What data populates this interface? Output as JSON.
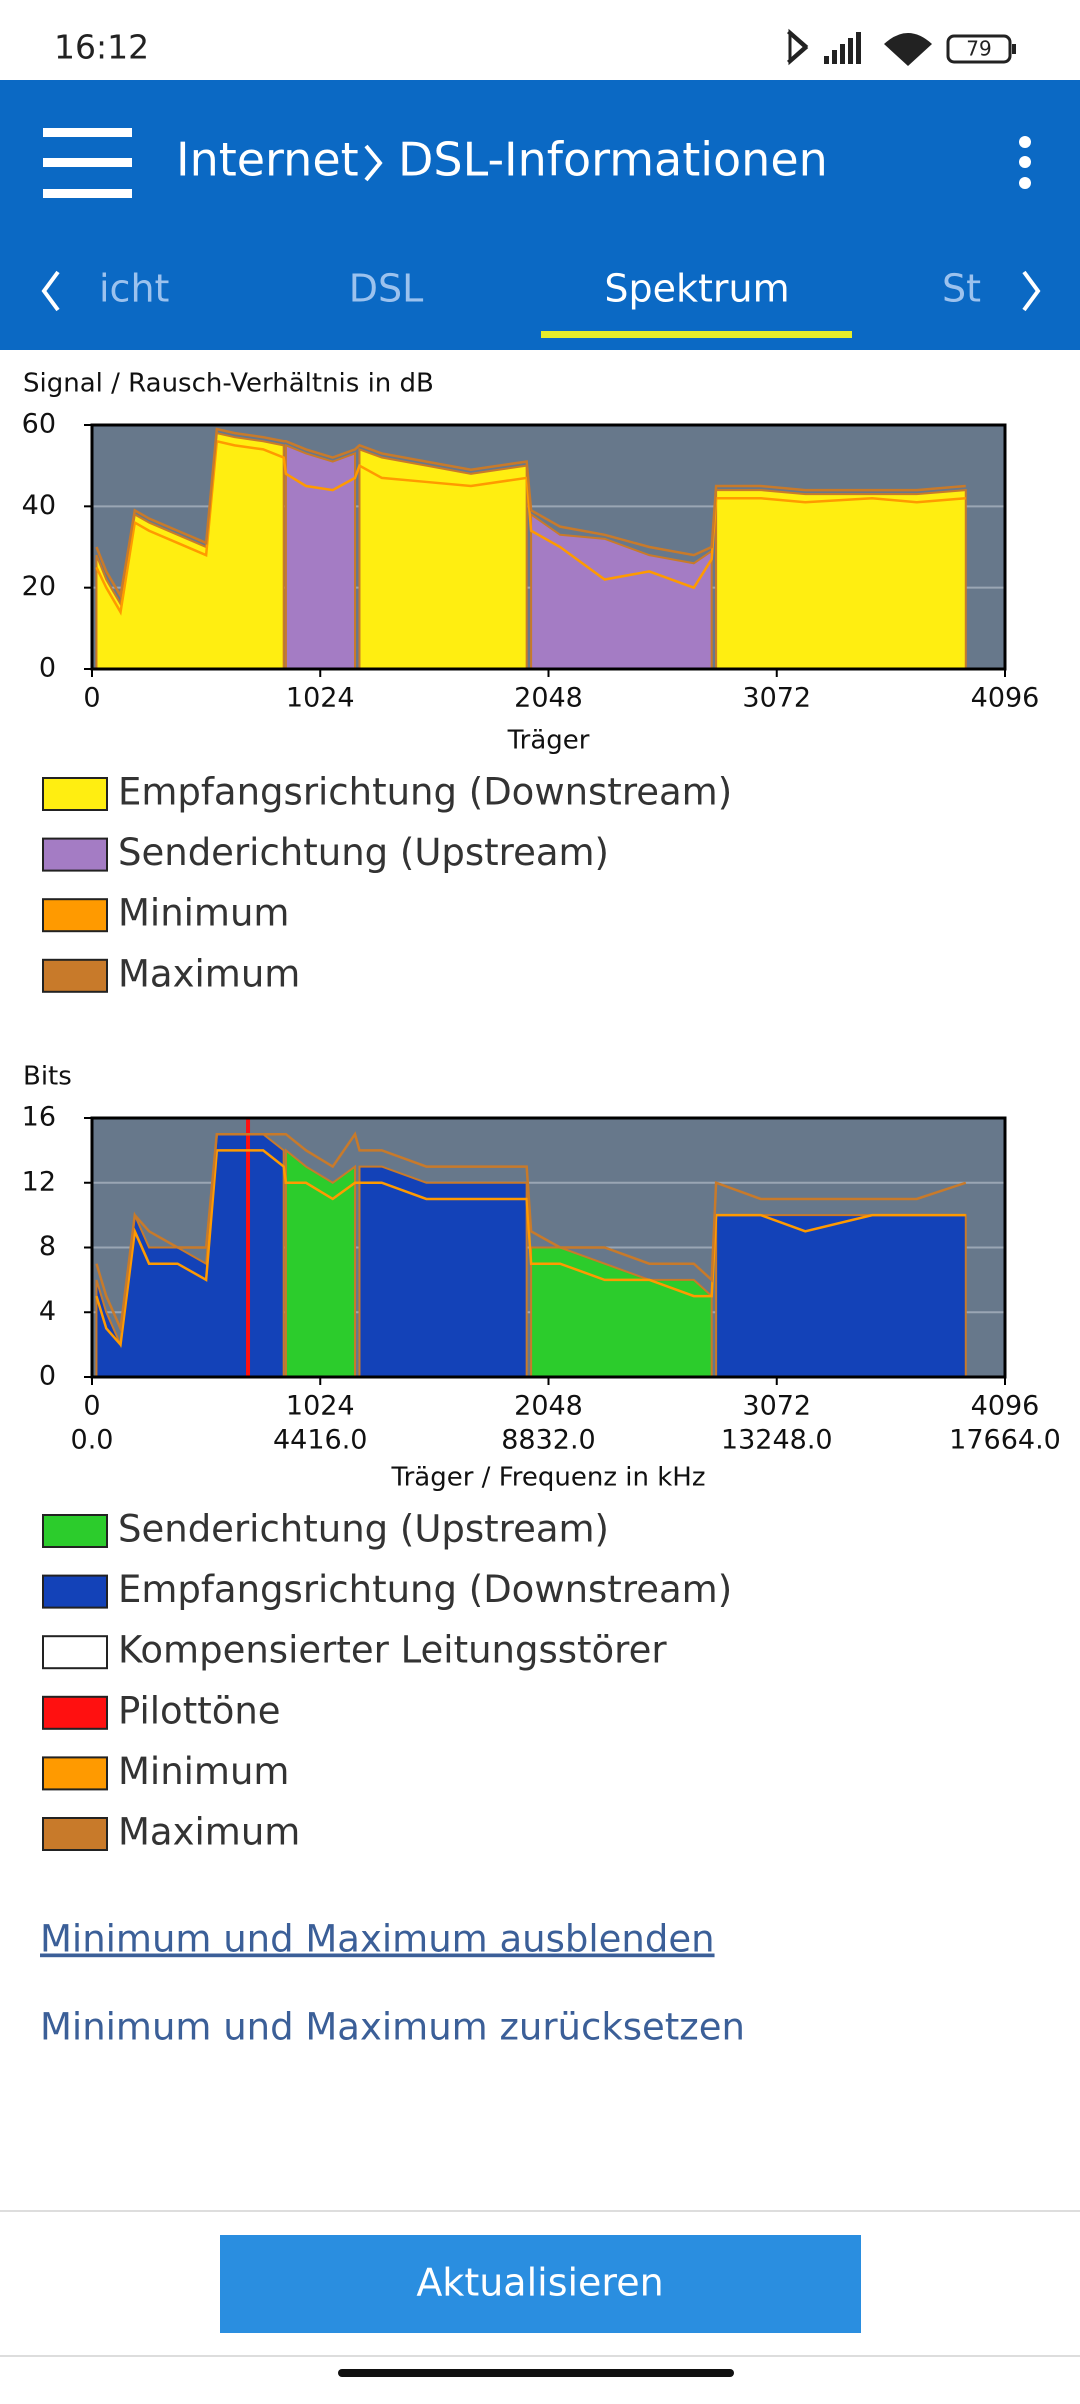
{
  "status_bar": {
    "time": "16:12",
    "battery": "79"
  },
  "header": {
    "parent": "Internet",
    "title": "DSL-Informationen"
  },
  "tabs": [
    "icht",
    "DSL",
    "Spektrum",
    "St"
  ],
  "chart_data": [
    {
      "type": "area",
      "ylabel": "Signal / Rausch-Verhältnis in dB",
      "xlabel": "Träger",
      "xlim": [
        0,
        4096
      ],
      "ylim": [
        0,
        60
      ],
      "xticks": [
        0,
        1024,
        2048,
        3072,
        4096
      ],
      "yticks": [
        0,
        20,
        40,
        60
      ],
      "grid": true,
      "background": "#67788b",
      "x": [
        20,
        64,
        128,
        192,
        256,
        384,
        512,
        560,
        640,
        768,
        860,
        870,
        960,
        1080,
        1180,
        1200,
        1300,
        1500,
        1700,
        1950,
        1970,
        2100,
        2300,
        2500,
        2700,
        2780,
        2800,
        3000,
        3200,
        3500,
        3700,
        3920
      ],
      "series": [
        {
          "name": "Empfangsrichtung (Downstream)",
          "color": "#ffee11",
          "style": "area",
          "values": [
            28,
            22,
            16,
            38,
            36,
            33,
            30,
            58,
            57,
            56,
            55,
            null,
            null,
            null,
            null,
            54,
            52,
            50,
            48,
            50,
            null,
            null,
            null,
            null,
            null,
            null,
            44,
            44,
            43,
            43,
            43,
            44
          ]
        },
        {
          "name": "Senderichtung (Upstream)",
          "color": "#a47cc4",
          "style": "area",
          "values": [
            null,
            null,
            null,
            null,
            null,
            null,
            null,
            null,
            null,
            null,
            null,
            55,
            53,
            51,
            53,
            null,
            null,
            null,
            null,
            null,
            38,
            33,
            32,
            28,
            26,
            29,
            null,
            null,
            null,
            null,
            null,
            null
          ]
        },
        {
          "name": "Minimum",
          "color": "#ff9a00",
          "style": "line",
          "values": [
            25,
            20,
            14,
            36,
            34,
            31,
            28,
            56,
            55,
            54,
            52,
            48,
            45,
            44,
            47,
            50,
            47,
            46,
            45,
            47,
            34,
            30,
            22,
            24,
            20,
            27,
            42,
            42,
            41,
            42,
            41,
            42
          ]
        },
        {
          "name": "Maximum",
          "color": "#c87a2a",
          "style": "line",
          "values": [
            30,
            24,
            18,
            39,
            37,
            34,
            31,
            59,
            58,
            57,
            56,
            56,
            54,
            52,
            54,
            55,
            53,
            51,
            49,
            51,
            39,
            35,
            33,
            30,
            28,
            30,
            45,
            45,
            44,
            44,
            44,
            45
          ]
        }
      ]
    },
    {
      "type": "area",
      "ylabel": "Bits",
      "xlabel": "Träger / Frequenz in kHz",
      "xlim": [
        0,
        4096
      ],
      "ylim": [
        0,
        16
      ],
      "xticks": [
        0,
        1024,
        2048,
        3072,
        4096
      ],
      "yticks": [
        0,
        4,
        8,
        12,
        16
      ],
      "x2lim": [
        0,
        17664
      ],
      "x2ticks": [
        {
          "value": 0,
          "label": "0.0"
        },
        {
          "value": 4416,
          "label": "4416.0"
        },
        {
          "value": 8832,
          "label": "8832.0"
        },
        {
          "value": 13248,
          "label": "13248.0"
        },
        {
          "value": 17664,
          "label": "17664.0"
        }
      ],
      "grid": true,
      "background": "#67788b",
      "x": [
        20,
        64,
        128,
        192,
        256,
        384,
        512,
        560,
        640,
        700,
        768,
        860,
        870,
        960,
        1080,
        1180,
        1200,
        1300,
        1500,
        1700,
        1950,
        1970,
        2100,
        2300,
        2500,
        2700,
        2780,
        2800,
        3000,
        3200,
        3500,
        3700,
        3920
      ],
      "series": [
        {
          "name": "Senderichtung (Upstream)",
          "color": "#2ccc2c",
          "style": "area",
          "values": [
            null,
            null,
            null,
            null,
            null,
            null,
            null,
            null,
            null,
            null,
            null,
            null,
            14,
            13,
            12,
            13,
            null,
            null,
            null,
            null,
            null,
            8,
            8,
            7,
            6,
            6,
            5,
            null,
            null,
            null,
            null,
            null,
            null
          ]
        },
        {
          "name": "Empfangsrichtung (Downstream)",
          "color": "#1342b8",
          "style": "area",
          "values": [
            6,
            4,
            2,
            10,
            8,
            8,
            7,
            15,
            15,
            15,
            15,
            14,
            null,
            null,
            null,
            null,
            13,
            13,
            12,
            12,
            12,
            null,
            null,
            null,
            null,
            null,
            null,
            10,
            10,
            10,
            10,
            10,
            10
          ]
        },
        {
          "name": "Kompensierter Leitungsstörer",
          "color": "#ffffff",
          "style": "spike",
          "values": [
            null,
            null,
            null,
            null,
            null,
            null,
            null,
            null,
            null,
            null,
            null,
            null,
            null,
            null,
            null,
            null,
            null,
            null,
            null,
            null,
            null,
            null,
            null,
            null,
            null,
            null,
            null,
            null,
            null,
            null,
            null,
            null,
            null
          ]
        },
        {
          "name": "Pilottöne",
          "color": "#ff1010",
          "style": "spike",
          "values": [
            null,
            null,
            null,
            null,
            null,
            null,
            null,
            null,
            null,
            16,
            null,
            null,
            null,
            null,
            null,
            null,
            null,
            null,
            null,
            null,
            null,
            null,
            null,
            null,
            null,
            null,
            null,
            null,
            null,
            null,
            null,
            null,
            null
          ]
        },
        {
          "name": "Minimum",
          "color": "#ff9a00",
          "style": "line",
          "values": [
            5,
            3,
            2,
            9,
            7,
            7,
            6,
            14,
            14,
            14,
            14,
            13,
            12,
            12,
            11,
            12,
            12,
            12,
            11,
            11,
            11,
            7,
            7,
            6,
            6,
            5,
            5,
            10,
            10,
            9,
            10,
            10,
            10
          ]
        },
        {
          "name": "Maximum",
          "color": "#c87a2a",
          "style": "line",
          "values": [
            7,
            5,
            3,
            10,
            9,
            8,
            8,
            15,
            15,
            15,
            15,
            15,
            15,
            14,
            13,
            15,
            14,
            14,
            13,
            13,
            13,
            9,
            8,
            8,
            7,
            7,
            6,
            12,
            11,
            11,
            11,
            11,
            12
          ]
        }
      ]
    }
  ],
  "links": [
    "Minimum und Maximum ausblenden",
    "Minimum und Maximum zurücksetzen"
  ],
  "button": "Aktualisieren"
}
